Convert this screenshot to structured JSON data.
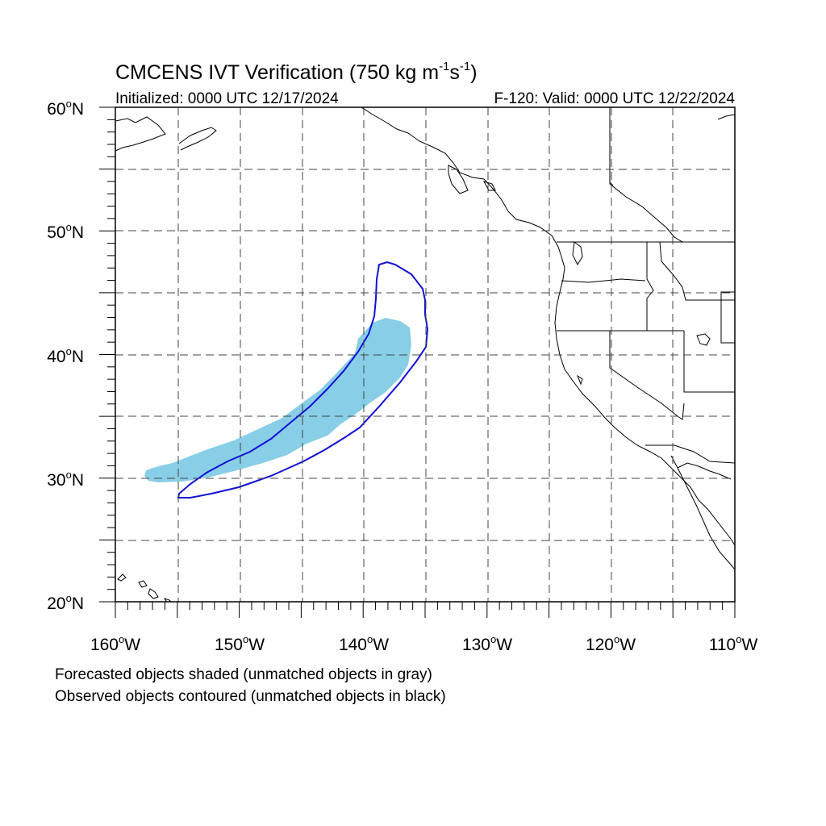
{
  "title": {
    "main": "CMCENS IVT Verification (750 kg m",
    "exp1": "-1",
    "mid": "s",
    "exp2": "-1",
    "close": ")"
  },
  "init_label": "Initialized: 0000 UTC 12/17/2024",
  "valid_label": "F-120: Valid: 0000 UTC 12/22/2024",
  "lat_labels": [
    "60",
    "50",
    "40",
    "30",
    "20"
  ],
  "lon_labels": [
    "160",
    "150",
    "140",
    "130",
    "120",
    "110"
  ],
  "lat_suffix": "N",
  "lon_suffix": "W",
  "footnotes": {
    "line1": "Forecasted objects shaded (unmatched objects in gray)",
    "line2": "Observed objects contoured (unmatched objects in black)"
  },
  "map": {
    "lon_range": [
      -160,
      -110
    ],
    "lat_range": [
      20,
      60
    ],
    "grid": "dashed every 5 degrees",
    "forecast_fill_color": "#87CEE6",
    "observed_contour_color": "#1010D8"
  }
}
